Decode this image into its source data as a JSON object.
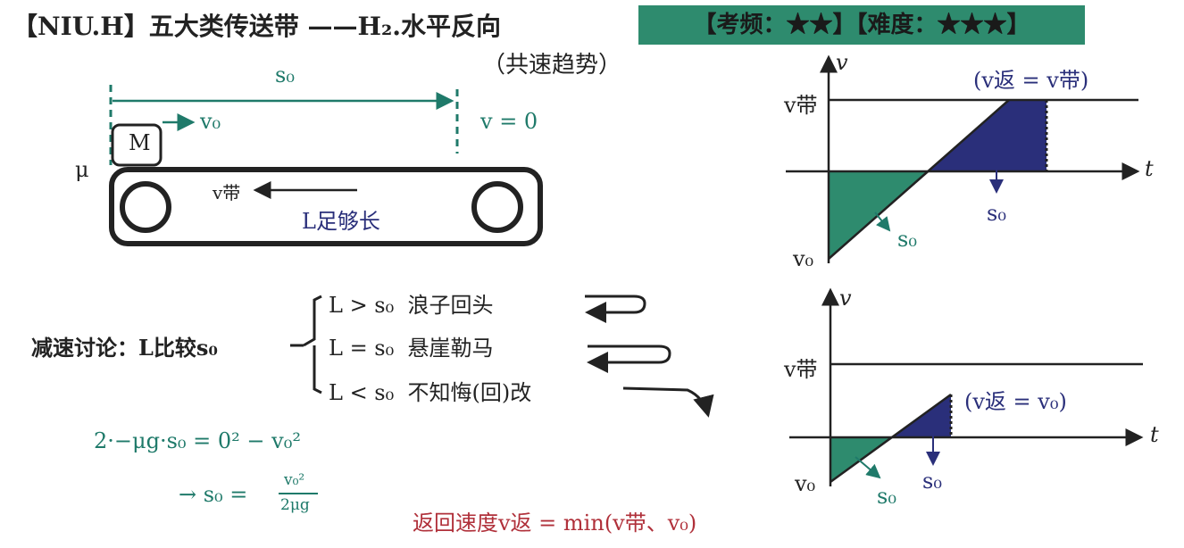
{
  "title": "【NIU.H】五大类传送带 ——H₂.水平反向",
  "subtitle": "（共速趋势）",
  "banner": "【考频：★★】【难度：★★★】",
  "diagram": {
    "s0": "s₀",
    "v0": "v₀",
    "v_zero": "v = 0",
    "block": "M",
    "mu": "μ",
    "belt_speed": "v带",
    "length_note": "L足够长"
  },
  "discussion": {
    "label": "减速讨论：L比较s₀",
    "cases": [
      {
        "cond": "L > s₀",
        "desc": "浪子回头"
      },
      {
        "cond": "L = s₀",
        "desc": "悬崖勒马"
      },
      {
        "cond": "L < s₀",
        "desc": "不知悔(回)改"
      }
    ]
  },
  "equations": {
    "eq1": "2·−μg·s₀ = 0² − v₀²",
    "eq2_lhs": "→ s₀ =",
    "eq2_num": "v₀²",
    "eq2_den": "2μg"
  },
  "return_speed": "返回速度v返 = min(v带、v₀)",
  "graph1": {
    "v_axis": "v",
    "t_axis": "t",
    "v_belt": "v带",
    "v0": "v₀",
    "s0_a": "s₀",
    "s0_b": "s₀",
    "note": "(v返 = v带)"
  },
  "graph2": {
    "v_axis": "v",
    "t_axis": "t",
    "v_belt": "v带",
    "v0": "v₀",
    "s0_a": "s₀",
    "s0_b": "s₀",
    "note": "(v返 = v₀)"
  },
  "colors": {
    "teal": "#1f7a6a",
    "navy": "#2a2f7a",
    "red": "#b0303a",
    "banner": "#2e8b6e"
  }
}
